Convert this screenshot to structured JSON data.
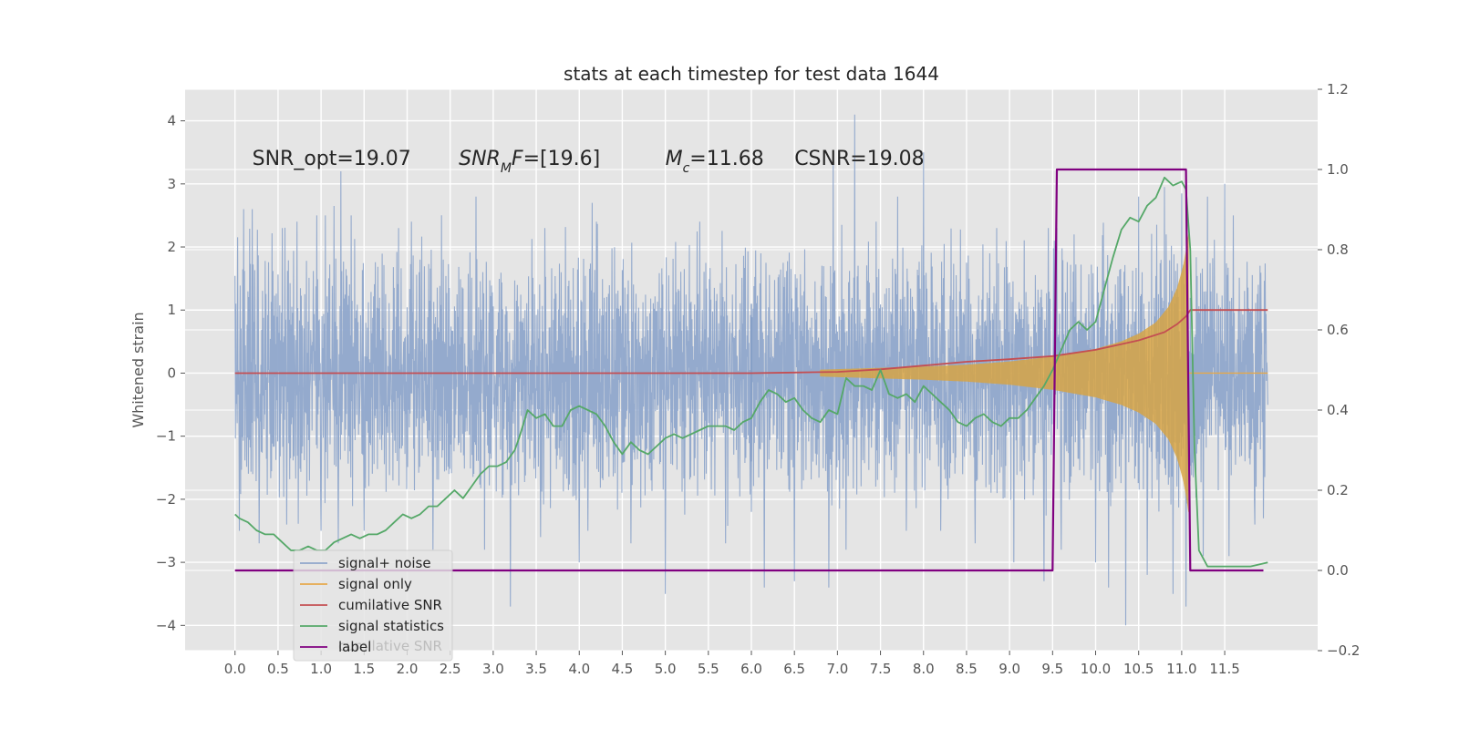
{
  "chart_data": {
    "type": "line",
    "title": "stats at each timestep for test data 1644",
    "ylabel": "Whitened strain",
    "xlabel": "",
    "xlim": [
      -0.58,
      12.58
    ],
    "ylim": [
      -4.4,
      4.5
    ],
    "y2lim": [
      -0.2,
      1.2
    ],
    "grid": true,
    "x_ticks": [
      "0.0",
      "0.5",
      "1.0",
      "1.5",
      "2.0",
      "2.5",
      "3.0",
      "3.5",
      "4.0",
      "4.5",
      "5.0",
      "5.5",
      "6.0",
      "6.5",
      "7.0",
      "7.5",
      "8.0",
      "8.5",
      "9.0",
      "9.5",
      "10.0",
      "10.5",
      "11.0",
      "11.5"
    ],
    "y_ticks": [
      "4",
      "3",
      "2",
      "1",
      "0",
      "−1",
      "−2",
      "−3",
      "−4"
    ],
    "y2_ticks": [
      "1.2",
      "1.0",
      "0.8",
      "0.6",
      "0.4",
      "0.2",
      "0.0",
      "−0.2"
    ],
    "annotations": [
      {
        "parts": [
          {
            "t": "SNR_opt=19.07",
            "it": false
          }
        ],
        "x": 0.2,
        "y": 3.3
      },
      {
        "parts": [
          {
            "t": "SNR",
            "it": true
          },
          {
            "t": "M",
            "it": true,
            "sub": true
          },
          {
            "t": "F",
            "it": true
          },
          {
            "t": "=[19.6]",
            "it": false
          }
        ],
        "x": 2.6,
        "y": 3.3
      },
      {
        "parts": [
          {
            "t": "M",
            "it": true
          },
          {
            "t": "c",
            "it": true,
            "sub": true
          },
          {
            "t": "=11.68",
            "it": false
          }
        ],
        "x": 5.0,
        "y": 3.3
      },
      {
        "parts": [
          {
            "t": "CSNR=19.08",
            "it": false
          }
        ],
        "x": 6.5,
        "y": 3.3
      }
    ],
    "legend": {
      "placement": "lower-left"
    },
    "series": [
      {
        "name": "signal+ noise",
        "axis": "left",
        "color": "#8fa6cb",
        "x_range": [
          0.0,
          12.0
        ],
        "typical_band": [
          -1.7,
          1.8
        ],
        "peaks_up": [
          [
            0.1,
            2.6
          ],
          [
            0.2,
            2.6
          ],
          [
            0.55,
            2.3
          ],
          [
            0.72,
            2.4
          ],
          [
            0.95,
            2.5
          ],
          [
            1.05,
            2.5
          ],
          [
            1.15,
            2.65
          ],
          [
            1.23,
            3.2
          ],
          [
            1.35,
            2.5
          ],
          [
            1.9,
            2.3
          ],
          [
            2.05,
            2.4
          ],
          [
            2.3,
            2.3
          ],
          [
            2.8,
            2.8
          ],
          [
            3.6,
            2.3
          ],
          [
            4.15,
            2.7
          ],
          [
            4.2,
            2.4
          ],
          [
            5.4,
            2.4
          ],
          [
            6.0,
            3.2
          ],
          [
            6.95,
            3.5
          ],
          [
            7.2,
            4.1
          ],
          [
            7.45,
            2.4
          ],
          [
            7.7,
            2.8
          ],
          [
            8.0,
            3.5
          ],
          [
            8.85,
            2.3
          ],
          [
            9.45,
            2.3
          ],
          [
            9.55,
            2.3
          ],
          [
            9.75,
            2.2
          ],
          [
            10.15,
            2.9
          ],
          [
            10.35,
            3.5
          ],
          [
            10.5,
            2.8
          ],
          [
            10.8,
            2.95
          ],
          [
            11.0,
            2.85
          ],
          [
            11.3,
            2.8
          ],
          [
            11.5,
            3.0
          ],
          [
            11.6,
            2.5
          ]
        ],
        "peaks_down": [
          [
            0.05,
            -2.5
          ],
          [
            0.28,
            -2.7
          ],
          [
            0.6,
            -2.4
          ],
          [
            1.0,
            -2.5
          ],
          [
            1.2,
            -2.7
          ],
          [
            1.5,
            -2.5
          ],
          [
            2.3,
            -2.8
          ],
          [
            2.9,
            -2.8
          ],
          [
            3.2,
            -3.7
          ],
          [
            3.55,
            -2.6
          ],
          [
            4.0,
            -3.0
          ],
          [
            4.1,
            -2.5
          ],
          [
            4.6,
            -2.7
          ],
          [
            5.0,
            -3.5
          ],
          [
            5.7,
            -2.7
          ],
          [
            6.0,
            -2.2
          ],
          [
            6.15,
            -3.4
          ],
          [
            6.5,
            -3.3
          ],
          [
            6.9,
            -3.4
          ],
          [
            7.1,
            -2.8
          ],
          [
            7.8,
            -2.5
          ],
          [
            8.2,
            -2.5
          ],
          [
            8.6,
            -2.7
          ],
          [
            9.05,
            -3.0
          ],
          [
            9.4,
            -3.3
          ],
          [
            9.6,
            -2.8
          ],
          [
            10.0,
            -3.0
          ],
          [
            10.15,
            -3.4
          ],
          [
            10.35,
            -4.0
          ],
          [
            10.6,
            -3.2
          ],
          [
            10.9,
            -3.5
          ],
          [
            11.05,
            -3.7
          ],
          [
            11.25,
            -2.9
          ],
          [
            11.55,
            -2.9
          ],
          [
            11.85,
            -2.4
          ],
          [
            11.95,
            -2.3
          ]
        ],
        "spikes": [
          [
            6.0,
            1.1,
            -1.4
          ]
        ]
      },
      {
        "name": "signal only",
        "axis": "left",
        "color": "#e6a84a",
        "chirp_start": 6.8,
        "merger": 11.08,
        "envelope": [
          [
            6.8,
            0.05
          ],
          [
            7.5,
            0.08
          ],
          [
            8.0,
            0.1
          ],
          [
            8.5,
            0.13
          ],
          [
            9.0,
            0.18
          ],
          [
            9.5,
            0.26
          ],
          [
            10.0,
            0.38
          ],
          [
            10.3,
            0.5
          ],
          [
            10.5,
            0.62
          ],
          [
            10.7,
            0.8
          ],
          [
            10.85,
            1.05
          ],
          [
            10.95,
            1.35
          ],
          [
            11.02,
            1.7
          ],
          [
            11.06,
            2.0
          ],
          [
            11.08,
            2.2
          ]
        ]
      },
      {
        "name": "cumilative SNR",
        "axis": "left",
        "color": "#c44e52",
        "points": [
          [
            0.0,
            0.0
          ],
          [
            6.0,
            0.0
          ],
          [
            6.5,
            0.01
          ],
          [
            7.0,
            0.02
          ],
          [
            7.5,
            0.06
          ],
          [
            8.0,
            0.12
          ],
          [
            8.5,
            0.18
          ],
          [
            9.0,
            0.22
          ],
          [
            9.5,
            0.27
          ],
          [
            10.0,
            0.37
          ],
          [
            10.5,
            0.52
          ],
          [
            10.8,
            0.65
          ],
          [
            10.95,
            0.78
          ],
          [
            11.05,
            0.9
          ],
          [
            11.1,
            1.0
          ],
          [
            12.0,
            1.0
          ]
        ]
      },
      {
        "name": "signal statistics",
        "axis": "right",
        "color": "#55a868",
        "points": [
          [
            0.0,
            0.14
          ],
          [
            0.05,
            0.13
          ],
          [
            0.15,
            0.12
          ],
          [
            0.25,
            0.1
          ],
          [
            0.35,
            0.09
          ],
          [
            0.45,
            0.09
          ],
          [
            0.55,
            0.07
          ],
          [
            0.65,
            0.05
          ],
          [
            0.75,
            0.05
          ],
          [
            0.85,
            0.06
          ],
          [
            0.95,
            0.05
          ],
          [
            1.05,
            0.05
          ],
          [
            1.15,
            0.07
          ],
          [
            1.25,
            0.08
          ],
          [
            1.35,
            0.09
          ],
          [
            1.45,
            0.08
          ],
          [
            1.55,
            0.09
          ],
          [
            1.65,
            0.09
          ],
          [
            1.75,
            0.1
          ],
          [
            1.85,
            0.12
          ],
          [
            1.95,
            0.14
          ],
          [
            2.05,
            0.13
          ],
          [
            2.15,
            0.14
          ],
          [
            2.25,
            0.16
          ],
          [
            2.35,
            0.16
          ],
          [
            2.45,
            0.18
          ],
          [
            2.55,
            0.2
          ],
          [
            2.65,
            0.18
          ],
          [
            2.75,
            0.21
          ],
          [
            2.85,
            0.24
          ],
          [
            2.95,
            0.26
          ],
          [
            3.05,
            0.26
          ],
          [
            3.15,
            0.27
          ],
          [
            3.25,
            0.3
          ],
          [
            3.3,
            0.33
          ],
          [
            3.4,
            0.4
          ],
          [
            3.5,
            0.38
          ],
          [
            3.6,
            0.39
          ],
          [
            3.7,
            0.36
          ],
          [
            3.8,
            0.36
          ],
          [
            3.9,
            0.4
          ],
          [
            4.0,
            0.41
          ],
          [
            4.1,
            0.4
          ],
          [
            4.2,
            0.39
          ],
          [
            4.3,
            0.36
          ],
          [
            4.4,
            0.32
          ],
          [
            4.5,
            0.29
          ],
          [
            4.6,
            0.32
          ],
          [
            4.7,
            0.3
          ],
          [
            4.8,
            0.29
          ],
          [
            4.9,
            0.31
          ],
          [
            5.0,
            0.33
          ],
          [
            5.1,
            0.34
          ],
          [
            5.2,
            0.33
          ],
          [
            5.3,
            0.34
          ],
          [
            5.4,
            0.35
          ],
          [
            5.5,
            0.36
          ],
          [
            5.6,
            0.36
          ],
          [
            5.7,
            0.36
          ],
          [
            5.8,
            0.35
          ],
          [
            5.9,
            0.37
          ],
          [
            6.0,
            0.38
          ],
          [
            6.1,
            0.42
          ],
          [
            6.2,
            0.45
          ],
          [
            6.3,
            0.44
          ],
          [
            6.4,
            0.42
          ],
          [
            6.5,
            0.43
          ],
          [
            6.6,
            0.4
          ],
          [
            6.7,
            0.38
          ],
          [
            6.8,
            0.37
          ],
          [
            6.9,
            0.4
          ],
          [
            7.0,
            0.39
          ],
          [
            7.1,
            0.48
          ],
          [
            7.2,
            0.46
          ],
          [
            7.3,
            0.46
          ],
          [
            7.4,
            0.45
          ],
          [
            7.5,
            0.5
          ],
          [
            7.6,
            0.44
          ],
          [
            7.7,
            0.43
          ],
          [
            7.8,
            0.44
          ],
          [
            7.9,
            0.42
          ],
          [
            8.0,
            0.46
          ],
          [
            8.1,
            0.44
          ],
          [
            8.2,
            0.42
          ],
          [
            8.3,
            0.4
          ],
          [
            8.4,
            0.37
          ],
          [
            8.5,
            0.36
          ],
          [
            8.6,
            0.38
          ],
          [
            8.7,
            0.39
          ],
          [
            8.8,
            0.37
          ],
          [
            8.9,
            0.36
          ],
          [
            9.0,
            0.38
          ],
          [
            9.1,
            0.38
          ],
          [
            9.2,
            0.4
          ],
          [
            9.3,
            0.43
          ],
          [
            9.4,
            0.46
          ],
          [
            9.5,
            0.5
          ],
          [
            9.6,
            0.55
          ],
          [
            9.7,
            0.6
          ],
          [
            9.8,
            0.62
          ],
          [
            9.9,
            0.6
          ],
          [
            10.0,
            0.62
          ],
          [
            10.1,
            0.7
          ],
          [
            10.2,
            0.78
          ],
          [
            10.3,
            0.85
          ],
          [
            10.4,
            0.88
          ],
          [
            10.5,
            0.87
          ],
          [
            10.6,
            0.91
          ],
          [
            10.7,
            0.93
          ],
          [
            10.8,
            0.98
          ],
          [
            10.9,
            0.96
          ],
          [
            11.0,
            0.97
          ],
          [
            11.05,
            0.95
          ],
          [
            11.1,
            0.8
          ],
          [
            11.15,
            0.3
          ],
          [
            11.2,
            0.05
          ],
          [
            11.3,
            0.01
          ],
          [
            11.5,
            0.01
          ],
          [
            11.8,
            0.01
          ],
          [
            12.0,
            0.02
          ]
        ]
      },
      {
        "name": "label",
        "axis": "right",
        "color": "#800080",
        "points": [
          [
            0.0,
            0.0
          ],
          [
            9.5,
            0.0
          ],
          [
            9.55,
            1.0
          ],
          [
            11.05,
            1.0
          ],
          [
            11.1,
            0.0
          ],
          [
            11.95,
            0.0
          ]
        ]
      }
    ],
    "legend_ghost_text": "cumilative SNR"
  }
}
